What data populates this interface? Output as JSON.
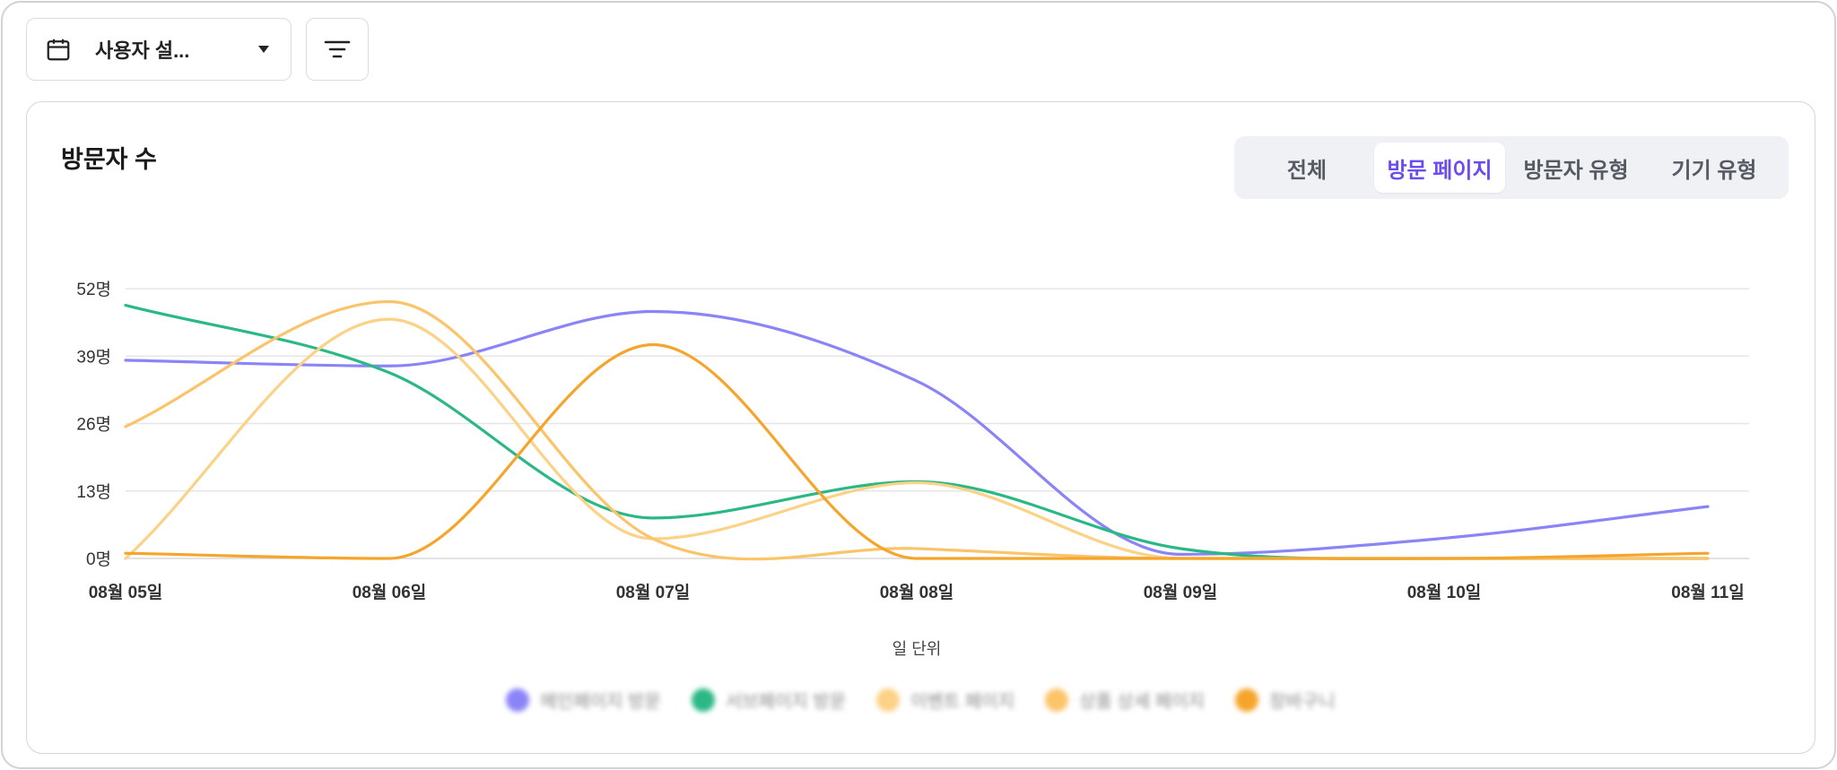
{
  "toolbar": {
    "date_select_label": "사용자 설...",
    "icons": {
      "calendar": "calendar-icon",
      "caret": "caret-down-icon",
      "filter": "filter-icon"
    }
  },
  "card": {
    "title": "방문자 수",
    "tabs": [
      {
        "label": "전체",
        "active": false
      },
      {
        "label": "방문 페이지",
        "active": true
      },
      {
        "label": "방문자 유형",
        "active": false
      },
      {
        "label": "기기 유형",
        "active": false
      }
    ]
  },
  "colors": {
    "accent": "#6c4cf0"
  },
  "chart_data": {
    "type": "line",
    "smooth": true,
    "categories": [
      "08월 05일",
      "08월 06일",
      "08월 07일",
      "08월 08일",
      "08월 09일",
      "08월 10일",
      "08월 11일"
    ],
    "y_ticks": [
      0,
      13,
      26,
      39,
      52
    ],
    "y_tick_labels": [
      "0명",
      "13명",
      "26명",
      "39명",
      "52명"
    ],
    "ylim": [
      0,
      52
    ],
    "xlabel": "일 단위",
    "grid": true,
    "legend_position": "bottom",
    "series": [
      {
        "name": "메인페이지 방문",
        "color": "#8b84f7",
        "values": [
          38.2,
          37.1,
          47.6,
          34.2,
          0.8,
          3.9,
          10.0
        ]
      },
      {
        "name": "서브페이지 방문",
        "color": "#2bb885",
        "values": [
          48.8,
          35.8,
          7.8,
          14.8,
          1.9,
          0.0,
          0.0
        ]
      },
      {
        "name": "이벤트 페이지",
        "color": "#fbd286",
        "values": [
          0.0,
          46.1,
          3.8,
          14.6,
          0.0,
          0.0,
          0.0
        ]
      },
      {
        "name": "상품 상세 페이지",
        "color": "#fcc46a",
        "values": [
          25.4,
          49.5,
          3.8,
          1.9,
          0.0,
          0.0,
          0.0
        ]
      },
      {
        "name": "장바구니",
        "color": "#f5a52b",
        "values": [
          1.0,
          0.0,
          41.2,
          0.0,
          0.0,
          0.0,
          1.0
        ]
      }
    ]
  }
}
